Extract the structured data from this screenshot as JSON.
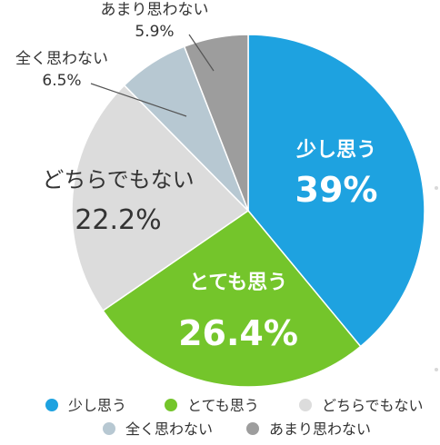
{
  "chart_data": {
    "type": "pie",
    "categories": [
      "少し思う",
      "とても思う",
      "どちらでもない",
      "全く思わない",
      "あまり思わない"
    ],
    "values": [
      39,
      26.4,
      22.2,
      6.5,
      5.9
    ],
    "value_labels": [
      "39%",
      "26.4%",
      "22.2%",
      "6.5%",
      "5.9%"
    ],
    "colors": [
      "#1ea2e0",
      "#74c52b",
      "#dcdcdc",
      "#b7c8d2",
      "#9d9d9d"
    ],
    "label_colors": [
      "#ffffff",
      "#ffffff",
      "#333333",
      "#333333",
      "#333333"
    ],
    "start_angle_deg": 0,
    "direction": "clockwise",
    "legend": {
      "position": "bottom",
      "items": [
        "少し思う",
        "とても思う",
        "どちらでもない",
        "全く思わない",
        "あまり思わない"
      ]
    }
  }
}
